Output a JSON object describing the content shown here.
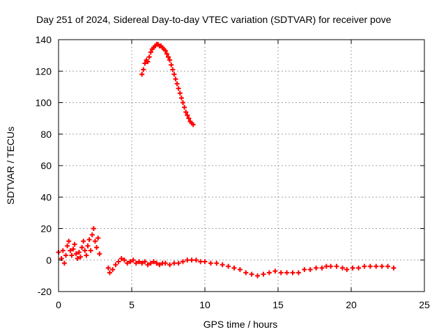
{
  "chart_data": {
    "type": "scatter",
    "title": "Day 251 of 2024, Sidereal Day-to-day VTEC variation (SDTVAR) for receiver pove",
    "xlabel": "GPS time / hours",
    "ylabel": "SDTVAR / TECUs",
    "xlim": [
      0,
      25
    ],
    "ylim": [
      -20,
      140
    ],
    "xticks": [
      "0",
      "5",
      "10",
      "15",
      "20",
      "25"
    ],
    "yticks": [
      "-20",
      "0",
      "20",
      "40",
      "60",
      "80",
      "100",
      "120",
      "140"
    ],
    "grid": true,
    "marker": "plus",
    "series": [
      {
        "name": "SDTVAR",
        "color": "#ff0000",
        "points": [
          [
            0.0,
            5
          ],
          [
            0.2,
            1
          ],
          [
            0.3,
            6
          ],
          [
            0.4,
            -2
          ],
          [
            0.5,
            3
          ],
          [
            0.6,
            9
          ],
          [
            0.7,
            12
          ],
          [
            0.8,
            6
          ],
          [
            0.9,
            3
          ],
          [
            1.0,
            7
          ],
          [
            1.1,
            10
          ],
          [
            1.2,
            4
          ],
          [
            1.3,
            1
          ],
          [
            1.4,
            5
          ],
          [
            1.5,
            2
          ],
          [
            1.6,
            8
          ],
          [
            1.7,
            12
          ],
          [
            1.8,
            6
          ],
          [
            1.9,
            3
          ],
          [
            2.0,
            9
          ],
          [
            2.1,
            13
          ],
          [
            2.2,
            6
          ],
          [
            2.3,
            16
          ],
          [
            2.4,
            20
          ],
          [
            2.5,
            12
          ],
          [
            2.6,
            8
          ],
          [
            2.7,
            14
          ],
          [
            2.8,
            4
          ],
          [
            3.4,
            -5
          ],
          [
            3.5,
            -8
          ],
          [
            3.7,
            -6
          ],
          [
            3.9,
            -3
          ],
          [
            4.1,
            -1
          ],
          [
            4.3,
            1
          ],
          [
            4.5,
            0
          ],
          [
            4.7,
            -2
          ],
          [
            4.9,
            -1
          ],
          [
            5.1,
            0
          ],
          [
            5.3,
            -2
          ],
          [
            5.5,
            -1
          ],
          [
            5.7,
            -2
          ],
          [
            5.9,
            -1
          ],
          [
            6.1,
            -3
          ],
          [
            6.3,
            -2
          ],
          [
            6.5,
            -1
          ],
          [
            6.7,
            -2
          ],
          [
            6.9,
            -3
          ],
          [
            7.1,
            -2
          ],
          [
            7.3,
            -2
          ],
          [
            7.6,
            -3
          ],
          [
            7.9,
            -2
          ],
          [
            8.2,
            -2
          ],
          [
            8.5,
            -1
          ],
          [
            8.8,
            0
          ],
          [
            9.1,
            0
          ],
          [
            9.4,
            0
          ],
          [
            9.7,
            -1
          ],
          [
            10.0,
            -1
          ],
          [
            10.4,
            -2
          ],
          [
            10.8,
            -2
          ],
          [
            11.2,
            -3
          ],
          [
            11.6,
            -4
          ],
          [
            12.0,
            -5
          ],
          [
            12.4,
            -6
          ],
          [
            12.8,
            -8
          ],
          [
            13.2,
            -9
          ],
          [
            13.6,
            -10
          ],
          [
            14.0,
            -9
          ],
          [
            14.4,
            -8
          ],
          [
            14.8,
            -7
          ],
          [
            15.2,
            -8
          ],
          [
            15.6,
            -8
          ],
          [
            16.0,
            -8
          ],
          [
            16.4,
            -8
          ],
          [
            16.8,
            -6
          ],
          [
            17.2,
            -6
          ],
          [
            17.6,
            -5
          ],
          [
            18.0,
            -5
          ],
          [
            18.3,
            -4
          ],
          [
            18.6,
            -4
          ],
          [
            19.0,
            -4
          ],
          [
            19.4,
            -5
          ],
          [
            19.7,
            -6
          ],
          [
            20.1,
            -5
          ],
          [
            20.5,
            -5
          ],
          [
            20.9,
            -4
          ],
          [
            21.3,
            -4
          ],
          [
            21.7,
            -4
          ],
          [
            22.1,
            -4
          ],
          [
            22.5,
            -4
          ],
          [
            22.9,
            -5
          ],
          [
            5.7,
            118
          ],
          [
            5.8,
            121
          ],
          [
            5.9,
            125
          ],
          [
            6.0,
            127
          ],
          [
            6.1,
            126
          ],
          [
            6.2,
            129
          ],
          [
            6.3,
            132
          ],
          [
            6.4,
            134
          ],
          [
            6.5,
            135
          ],
          [
            6.6,
            136
          ],
          [
            6.7,
            137
          ],
          [
            6.8,
            137
          ],
          [
            6.9,
            136
          ],
          [
            7.0,
            136
          ],
          [
            7.1,
            135
          ],
          [
            7.2,
            134
          ],
          [
            7.3,
            133
          ],
          [
            7.4,
            131
          ],
          [
            7.5,
            129
          ],
          [
            7.6,
            127
          ],
          [
            7.7,
            124
          ],
          [
            7.8,
            121
          ],
          [
            7.9,
            118
          ],
          [
            8.0,
            115
          ],
          [
            8.1,
            112
          ],
          [
            8.2,
            109
          ],
          [
            8.3,
            106
          ],
          [
            8.4,
            103
          ],
          [
            8.5,
            100
          ],
          [
            8.6,
            97
          ],
          [
            8.7,
            94
          ],
          [
            8.8,
            92
          ],
          [
            8.9,
            90
          ],
          [
            9.0,
            88
          ],
          [
            9.1,
            87
          ],
          [
            9.2,
            86
          ]
        ]
      }
    ]
  }
}
